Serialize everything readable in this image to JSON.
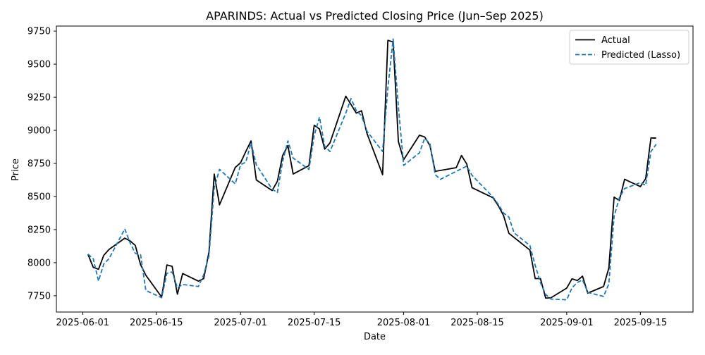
{
  "chart_data": {
    "type": "line",
    "title": "APARINDS: Actual vs Predicted Closing Price (Jun–Sep 2025)",
    "xlabel": "Date",
    "ylabel": "Price",
    "xlim": [
      "2025-05-27",
      "2025-09-25"
    ],
    "ylim": [
      7627,
      9788
    ],
    "grid": false,
    "legend_position": "top-right",
    "x_ticks": [
      "2025-06-01",
      "2025-06-15",
      "2025-07-01",
      "2025-07-15",
      "2025-08-01",
      "2025-08-15",
      "2025-09-01",
      "2025-09-15"
    ],
    "y_ticks": [
      7750,
      8000,
      8250,
      8500,
      8750,
      9000,
      9250,
      9500,
      9750
    ],
    "y_tick_labels": [
      "7750",
      "8000",
      "8250",
      "8500",
      "8750",
      "9000",
      "9250",
      "9500",
      "9750"
    ],
    "series": [
      {
        "name": "Actual",
        "color": "#000000",
        "style": "solid",
        "points": [
          [
            "2025-06-02",
            8063
          ],
          [
            "2025-06-03",
            7965
          ],
          [
            "2025-06-04",
            7950
          ],
          [
            "2025-06-05",
            8055
          ],
          [
            "2025-06-06",
            8100
          ],
          [
            "2025-06-09",
            8185
          ],
          [
            "2025-06-10",
            8165
          ],
          [
            "2025-06-11",
            8130
          ],
          [
            "2025-06-12",
            7985
          ],
          [
            "2025-06-13",
            7905
          ],
          [
            "2025-06-16",
            7740
          ],
          [
            "2025-06-17",
            7983
          ],
          [
            "2025-06-18",
            7972
          ],
          [
            "2025-06-19",
            7762
          ],
          [
            "2025-06-20",
            7918
          ],
          [
            "2025-06-23",
            7860
          ],
          [
            "2025-06-24",
            7880
          ],
          [
            "2025-06-25",
            8080
          ],
          [
            "2025-06-26",
            8670
          ],
          [
            "2025-06-27",
            8437
          ],
          [
            "2025-06-30",
            8720
          ],
          [
            "2025-07-01",
            8755
          ],
          [
            "2025-07-02",
            8840
          ],
          [
            "2025-07-03",
            8920
          ],
          [
            "2025-07-04",
            8625
          ],
          [
            "2025-07-07",
            8545
          ],
          [
            "2025-07-08",
            8615
          ],
          [
            "2025-07-09",
            8810
          ],
          [
            "2025-07-10",
            8885
          ],
          [
            "2025-07-11",
            8670
          ],
          [
            "2025-07-14",
            8733
          ],
          [
            "2025-07-15",
            9038
          ],
          [
            "2025-07-16",
            9010
          ],
          [
            "2025-07-17",
            8858
          ],
          [
            "2025-07-18",
            8905
          ],
          [
            "2025-07-21",
            9258
          ],
          [
            "2025-07-22",
            9195
          ],
          [
            "2025-07-23",
            9130
          ],
          [
            "2025-07-24",
            9148
          ],
          [
            "2025-07-25",
            8980
          ],
          [
            "2025-07-28",
            8665
          ],
          [
            "2025-07-29",
            9680
          ],
          [
            "2025-07-30",
            9668
          ],
          [
            "2025-07-31",
            8915
          ],
          [
            "2025-08-01",
            8778
          ],
          [
            "2025-08-04",
            8963
          ],
          [
            "2025-08-05",
            8950
          ],
          [
            "2025-08-06",
            8885
          ],
          [
            "2025-08-07",
            8690
          ],
          [
            "2025-08-11",
            8718
          ],
          [
            "2025-08-12",
            8810
          ],
          [
            "2025-08-13",
            8745
          ],
          [
            "2025-08-14",
            8567
          ],
          [
            "2025-08-18",
            8490
          ],
          [
            "2025-08-19",
            8430
          ],
          [
            "2025-08-20",
            8355
          ],
          [
            "2025-08-21",
            8222
          ],
          [
            "2025-08-25",
            8095
          ],
          [
            "2025-08-26",
            7880
          ],
          [
            "2025-08-27",
            7880
          ],
          [
            "2025-08-28",
            7732
          ],
          [
            "2025-08-29",
            7735
          ],
          [
            "2025-09-01",
            7808
          ],
          [
            "2025-09-02",
            7878
          ],
          [
            "2025-09-03",
            7865
          ],
          [
            "2025-09-04",
            7898
          ],
          [
            "2025-09-05",
            7770
          ],
          [
            "2025-09-08",
            7820
          ],
          [
            "2025-09-09",
            7960
          ],
          [
            "2025-09-10",
            8495
          ],
          [
            "2025-09-11",
            8470
          ],
          [
            "2025-09-12",
            8630
          ],
          [
            "2025-09-15",
            8575
          ],
          [
            "2025-09-16",
            8635
          ],
          [
            "2025-09-17",
            8942
          ],
          [
            "2025-09-18",
            8942
          ]
        ]
      },
      {
        "name": "Predicted (Lasso)",
        "color": "#1f77b4",
        "style": "dashed",
        "points": [
          [
            "2025-06-02",
            8065
          ],
          [
            "2025-06-03",
            8030
          ],
          [
            "2025-06-04",
            7862
          ],
          [
            "2025-06-05",
            7990
          ],
          [
            "2025-06-06",
            8030
          ],
          [
            "2025-06-09",
            8255
          ],
          [
            "2025-06-10",
            8150
          ],
          [
            "2025-06-11",
            8070
          ],
          [
            "2025-06-12",
            8060
          ],
          [
            "2025-06-13",
            7790
          ],
          [
            "2025-06-16",
            7735
          ],
          [
            "2025-06-17",
            7920
          ],
          [
            "2025-06-18",
            7930
          ],
          [
            "2025-06-19",
            7810
          ],
          [
            "2025-06-20",
            7835
          ],
          [
            "2025-06-23",
            7820
          ],
          [
            "2025-06-24",
            7910
          ],
          [
            "2025-06-25",
            8050
          ],
          [
            "2025-06-26",
            8565
          ],
          [
            "2025-06-27",
            8705
          ],
          [
            "2025-06-30",
            8595
          ],
          [
            "2025-07-01",
            8740
          ],
          [
            "2025-07-02",
            8760
          ],
          [
            "2025-07-03",
            8905
          ],
          [
            "2025-07-04",
            8740
          ],
          [
            "2025-07-07",
            8555
          ],
          [
            "2025-07-08",
            8530
          ],
          [
            "2025-07-09",
            8765
          ],
          [
            "2025-07-10",
            8920
          ],
          [
            "2025-07-11",
            8790
          ],
          [
            "2025-07-14",
            8705
          ],
          [
            "2025-07-15",
            8960
          ],
          [
            "2025-07-16",
            9100
          ],
          [
            "2025-07-17",
            8880
          ],
          [
            "2025-07-18",
            8840
          ],
          [
            "2025-07-21",
            9130
          ],
          [
            "2025-07-22",
            9240
          ],
          [
            "2025-07-23",
            9150
          ],
          [
            "2025-07-24",
            9110
          ],
          [
            "2025-07-25",
            8995
          ],
          [
            "2025-07-28",
            8840
          ],
          [
            "2025-07-29",
            9320
          ],
          [
            "2025-07-30",
            9690
          ],
          [
            "2025-07-31",
            9180
          ],
          [
            "2025-08-01",
            8735
          ],
          [
            "2025-08-04",
            8830
          ],
          [
            "2025-08-05",
            8940
          ],
          [
            "2025-08-06",
            8900
          ],
          [
            "2025-08-07",
            8665
          ],
          [
            "2025-08-08",
            8630
          ],
          [
            "2025-08-11",
            8690
          ],
          [
            "2025-08-12",
            8710
          ],
          [
            "2025-08-13",
            8730
          ],
          [
            "2025-08-14",
            8660
          ],
          [
            "2025-08-18",
            8495
          ],
          [
            "2025-08-19",
            8440
          ],
          [
            "2025-08-20",
            8375
          ],
          [
            "2025-08-21",
            8345
          ],
          [
            "2025-08-22",
            8225
          ],
          [
            "2025-08-25",
            8130
          ],
          [
            "2025-08-26",
            7980
          ],
          [
            "2025-08-27",
            7850
          ],
          [
            "2025-08-28",
            7760
          ],
          [
            "2025-08-29",
            7725
          ],
          [
            "2025-09-01",
            7720
          ],
          [
            "2025-09-02",
            7810
          ],
          [
            "2025-09-03",
            7850
          ],
          [
            "2025-09-04",
            7870
          ],
          [
            "2025-09-05",
            7775
          ],
          [
            "2025-09-08",
            7745
          ],
          [
            "2025-09-09",
            7840
          ],
          [
            "2025-09-10",
            8350
          ],
          [
            "2025-09-11",
            8490
          ],
          [
            "2025-09-12",
            8560
          ],
          [
            "2025-09-15",
            8605
          ],
          [
            "2025-09-16",
            8585
          ],
          [
            "2025-09-17",
            8840
          ],
          [
            "2025-09-18",
            8895
          ]
        ]
      }
    ]
  }
}
